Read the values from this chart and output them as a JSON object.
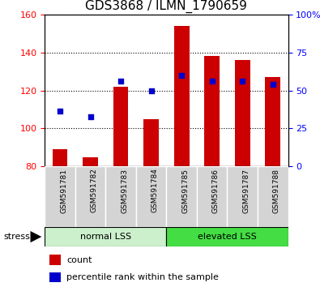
{
  "title": "GDS3868 / ILMN_1790659",
  "categories": [
    "GSM591781",
    "GSM591782",
    "GSM591783",
    "GSM591784",
    "GSM591785",
    "GSM591786",
    "GSM591787",
    "GSM591788"
  ],
  "bar_values": [
    89,
    85,
    122,
    105,
    154,
    138,
    136,
    127
  ],
  "blue_values": [
    109,
    106,
    125,
    120,
    128,
    125,
    125,
    123
  ],
  "ymin": 80,
  "ymax": 160,
  "yticks": [
    80,
    100,
    120,
    140,
    160
  ],
  "y2ticks": [
    0,
    25,
    50,
    75,
    100
  ],
  "y2min": 0,
  "y2max": 100,
  "bar_color": "#cc0000",
  "blue_color": "#0000cc",
  "bar_width": 0.5,
  "group1_label": "normal LSS",
  "group2_label": "elevated LSS",
  "group1_indices": [
    0,
    1,
    2,
    3
  ],
  "group2_indices": [
    4,
    5,
    6,
    7
  ],
  "stress_label": "stress",
  "legend_bar_label": "count",
  "legend_blue_label": "percentile rank within the sample",
  "group_bg1": "#ccf0cc",
  "group_bg2": "#44dd44",
  "tick_fontsize": 8,
  "title_fontsize": 11
}
